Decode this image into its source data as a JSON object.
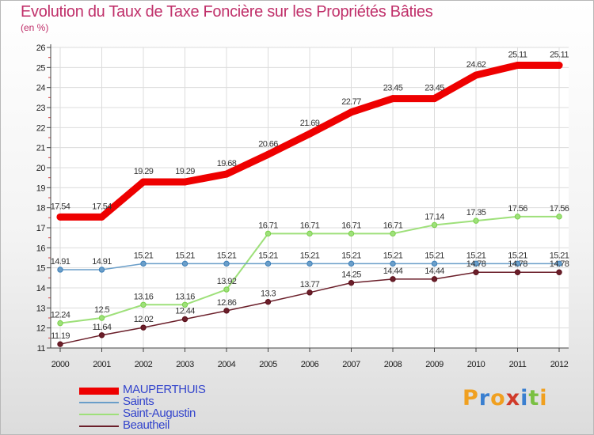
{
  "chart_data": {
    "type": "line",
    "title": "Evolution du Taux de Taxe Foncière sur les Propriétés Bâties",
    "ylabel": "(en %)",
    "xlabel": "",
    "x": [
      "2000",
      "2001",
      "2002",
      "2003",
      "2004",
      "2005",
      "2006",
      "2007",
      "2008",
      "2009",
      "2010",
      "2011",
      "2012"
    ],
    "ylim": [
      11,
      26
    ],
    "yticks": [
      "11",
      "12",
      "13",
      "14",
      "15",
      "16",
      "17",
      "18",
      "19",
      "20",
      "21",
      "22",
      "23",
      "24",
      "25",
      "26"
    ],
    "grid": true,
    "legend_position": "bottom-left",
    "series": [
      {
        "name": "Beautheil",
        "color": "#6b1f2a",
        "values": [
          11.19,
          11.64,
          12.02,
          12.44,
          12.86,
          13.3,
          13.77,
          14.25,
          14.44,
          14.44,
          14.78,
          14.78,
          14.78
        ],
        "labels": [
          "11.19",
          "11.64",
          "12.02",
          "12.44",
          "12.86",
          "13.3",
          "13.77",
          "14.25",
          "14.44",
          "14.44",
          "14.78",
          "14.78",
          "14.78"
        ]
      },
      {
        "name": "Saint-Augustin",
        "color": "#9ee07a",
        "values": [
          12.24,
          12.5,
          13.16,
          13.16,
          13.92,
          16.71,
          16.71,
          16.71,
          16.71,
          17.14,
          17.35,
          17.56,
          17.56
        ],
        "labels": [
          "12.24",
          "12.5",
          "13.16",
          "13.16",
          "13.92",
          "16.71",
          "16.71",
          "16.71",
          "16.71",
          "17.14",
          "17.35",
          "17.56",
          "17.56"
        ]
      },
      {
        "name": "Saints",
        "color": "#6a9ec9",
        "values": [
          14.91,
          14.91,
          15.21,
          15.21,
          15.21,
          15.21,
          15.21,
          15.21,
          15.21,
          15.21,
          15.21,
          15.21,
          15.21
        ],
        "labels": [
          "14.91",
          "14.91",
          "15.21",
          "15.21",
          "15.21",
          "15.21",
          "15.21",
          "15.21",
          "15.21",
          "15.21",
          "15.21",
          "15.21",
          "15.21"
        ]
      },
      {
        "name": "MAUPERTHUIS",
        "color": "#ee0000",
        "values": [
          17.54,
          17.54,
          19.29,
          19.29,
          19.68,
          20.66,
          21.69,
          22.77,
          23.45,
          23.45,
          24.62,
          25.11,
          25.11
        ],
        "labels": [
          "17.54",
          "17.54",
          "19.29",
          "19.29",
          "19.68",
          "20.66",
          "21.69",
          "22.77",
          "23.45",
          "23.45",
          "24.62",
          "25.11",
          "25.11"
        ]
      }
    ]
  },
  "legend": [
    "MAUPERTHUIS",
    "Saints",
    "Saint-Augustin",
    "Beautheil"
  ],
  "logo": {
    "text": "Proxiti"
  }
}
